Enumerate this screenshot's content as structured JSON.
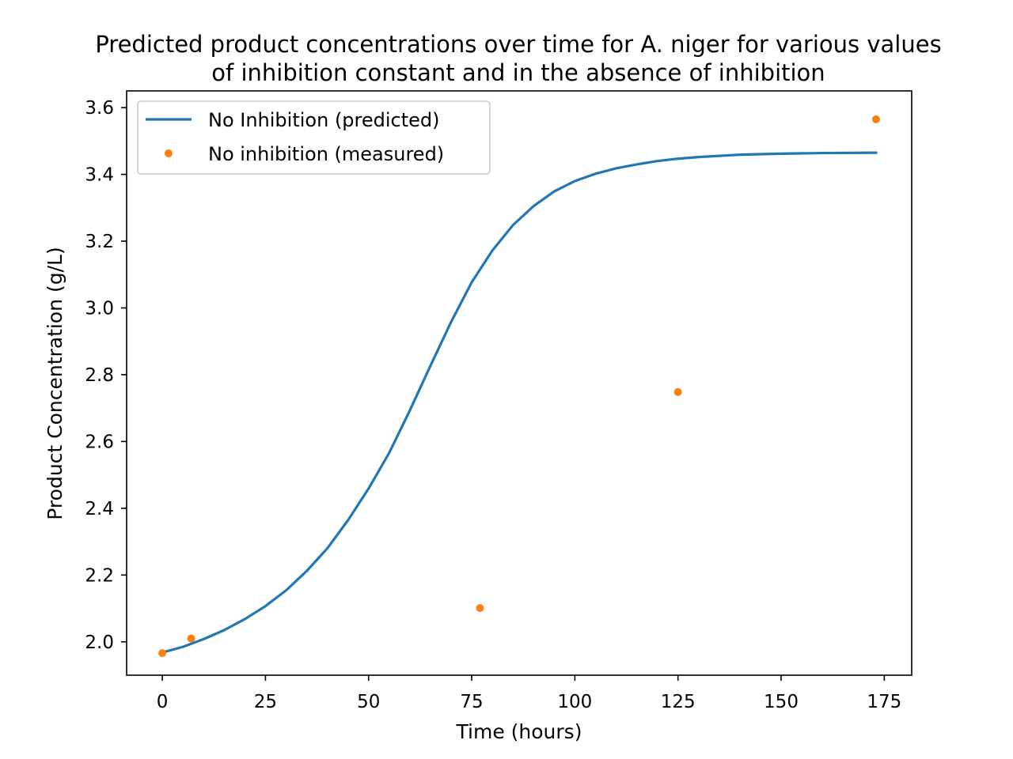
{
  "chart_data": {
    "type": "line",
    "title_lines": [
      "Predicted product concentrations over time for A. niger for various values",
      "of inhibition constant and in the absence of inhibition"
    ],
    "xlabel": "Time (hours)",
    "ylabel": "Product Concentration (g/L)",
    "xlim": [
      -8.65,
      181.65
    ],
    "ylim": [
      1.9,
      3.65
    ],
    "xticks": [
      0,
      25,
      50,
      75,
      100,
      125,
      150,
      175
    ],
    "yticks": [
      2.0,
      2.2,
      2.4,
      2.6,
      2.8,
      3.0,
      3.2,
      3.4,
      3.6
    ],
    "grid": false,
    "legend_position": "top-left",
    "series": [
      {
        "name": "No Inhibition (predicted)",
        "kind": "line",
        "color": "#1f77b4",
        "x": [
          0,
          5,
          10,
          15,
          20,
          25,
          30,
          35,
          40,
          45,
          50,
          55,
          60,
          65,
          70,
          75,
          80,
          85,
          90,
          95,
          100,
          105,
          110,
          115,
          120,
          125,
          130,
          140,
          150,
          160,
          173
        ],
        "y": [
          1.968,
          1.985,
          2.008,
          2.035,
          2.068,
          2.107,
          2.154,
          2.212,
          2.28,
          2.364,
          2.459,
          2.566,
          2.693,
          2.827,
          2.958,
          3.077,
          3.172,
          3.248,
          3.305,
          3.349,
          3.38,
          3.402,
          3.418,
          3.43,
          3.44,
          3.447,
          3.452,
          3.459,
          3.462,
          3.464,
          3.465
        ]
      },
      {
        "name": "No inhibition (measured)",
        "kind": "scatter",
        "color": "#ff7f0e",
        "x": [
          0,
          7,
          77,
          125,
          173
        ],
        "y": [
          1.966,
          2.01,
          2.101,
          2.748,
          3.565
        ]
      }
    ]
  }
}
